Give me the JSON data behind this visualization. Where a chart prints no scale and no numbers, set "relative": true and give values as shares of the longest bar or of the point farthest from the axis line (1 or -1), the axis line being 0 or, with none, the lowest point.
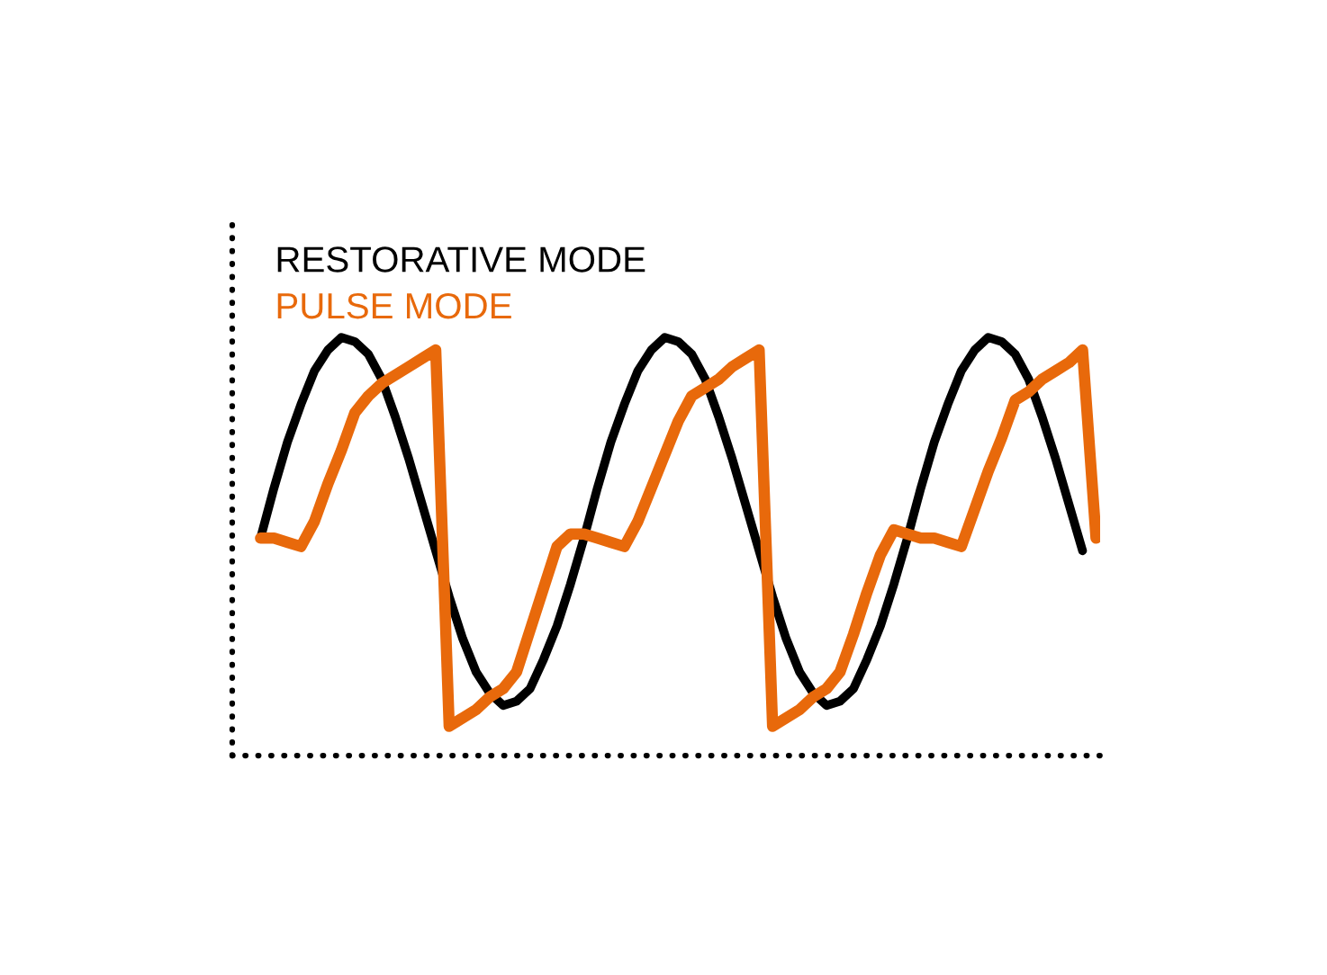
{
  "chart_data": {
    "type": "line",
    "relative": true,
    "legend": "top left",
    "marker": "none",
    "line_style": "solid",
    "categories": [
      null,
      null,
      null,
      null,
      null,
      null,
      null,
      null,
      null,
      null,
      null,
      null,
      null,
      null,
      null,
      null,
      null,
      null,
      null,
      null,
      null,
      null,
      null,
      null,
      null,
      null,
      null,
      null,
      null,
      null,
      null,
      null,
      null,
      null,
      null,
      null,
      null,
      null,
      null,
      null,
      null,
      null,
      null,
      null,
      null,
      null,
      null,
      null,
      null,
      null,
      null,
      null,
      null,
      null,
      null,
      null,
      null,
      null,
      null,
      null,
      null,
      null,
      null
    ],
    "series": [
      {
        "name": "RESTORATIVE MODE",
        "color": "#000000",
        "values": [
          0.52,
          0.64,
          0.75,
          0.84,
          0.92,
          0.97,
          1.0,
          0.99,
          0.96,
          0.9,
          0.81,
          0.71,
          0.6,
          0.49,
          0.38,
          0.28,
          0.2,
          0.15,
          0.12,
          0.13,
          0.16,
          0.23,
          0.31,
          0.41,
          0.52,
          0.64,
          0.75,
          0.84,
          0.92,
          0.97,
          1.0,
          0.99,
          0.96,
          0.9,
          0.81,
          0.71,
          0.6,
          0.49,
          0.38,
          0.28,
          0.2,
          0.15,
          0.12,
          0.13,
          0.16,
          0.23,
          0.31,
          0.41,
          0.52,
          0.64,
          0.75,
          0.84,
          0.92,
          0.97,
          1.0,
          0.99,
          0.96,
          0.9,
          0.81,
          0.71,
          0.6,
          0.49,
          null
        ]
      },
      {
        "name": "PULSE MODE",
        "color": "#e8690b",
        "values": [
          0.52,
          0.52,
          0.51,
          0.5,
          0.56,
          0.65,
          0.73,
          0.82,
          0.86,
          0.89,
          0.91,
          0.93,
          0.95,
          0.97,
          0.07,
          0.09,
          0.11,
          0.14,
          0.16,
          0.2,
          0.3,
          0.4,
          0.5,
          0.53,
          0.53,
          0.52,
          0.51,
          0.5,
          0.56,
          0.64,
          0.72,
          0.8,
          0.86,
          0.88,
          0.9,
          0.93,
          0.95,
          0.97,
          0.07,
          0.09,
          0.11,
          0.14,
          0.16,
          0.2,
          0.29,
          0.39,
          0.48,
          0.54,
          0.53,
          0.52,
          0.52,
          0.51,
          0.5,
          0.59,
          0.68,
          0.76,
          0.85,
          0.87,
          0.9,
          0.92,
          0.94,
          0.97,
          0.52
        ]
      }
    ]
  }
}
